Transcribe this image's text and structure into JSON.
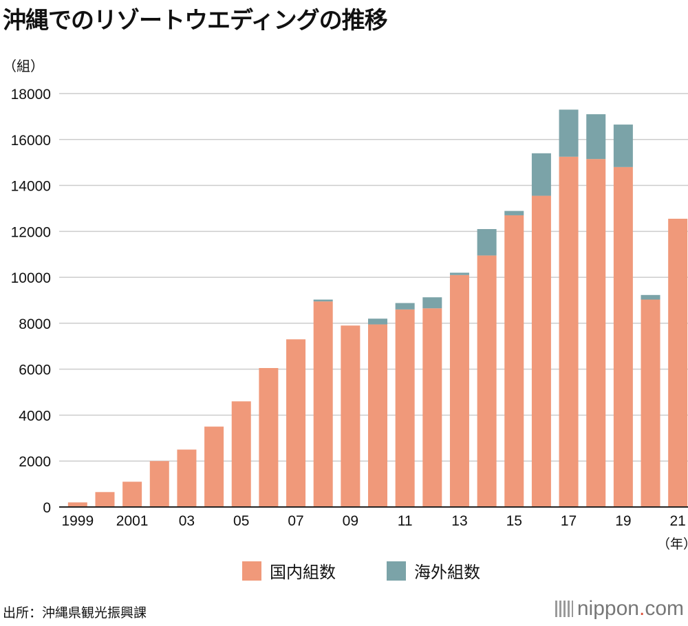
{
  "title": "沖縄でのリゾートウエディングの推移",
  "y_unit": "（組）",
  "x_unit": "（年）",
  "source": "出所：沖縄県観光振興課",
  "logo": {
    "name": "nippon",
    "dot": ".",
    "suffix": "com"
  },
  "colors": {
    "domestic": "#f0997a",
    "overseas": "#7ba3a8",
    "grid": "#cccccc",
    "axis": "#222222"
  },
  "chart_data": {
    "type": "bar",
    "stacked": true,
    "title": "沖縄でのリゾートウエディングの推移",
    "xlabel": "（年）",
    "ylabel": "（組）",
    "ylim": [
      0,
      18000
    ],
    "yticks": [
      0,
      2000,
      4000,
      6000,
      8000,
      10000,
      12000,
      14000,
      16000,
      18000
    ],
    "categories": [
      "1999",
      "2000",
      "2001",
      "2002",
      "2003",
      "2004",
      "2005",
      "2006",
      "2007",
      "2008",
      "2009",
      "2010",
      "2011",
      "2012",
      "2013",
      "2014",
      "2015",
      "2016",
      "2017",
      "2018",
      "2019",
      "2020",
      "2021"
    ],
    "xtick_labels": [
      "1999",
      "",
      "2001",
      "",
      "03",
      "",
      "05",
      "",
      "07",
      "",
      "09",
      "",
      "11",
      "",
      "13",
      "",
      "15",
      "",
      "17",
      "",
      "19",
      "",
      "21"
    ],
    "legend": [
      "国内組数",
      "海外組数"
    ],
    "legend_position": "bottom",
    "series": [
      {
        "name": "国内組数",
        "values": [
          200,
          650,
          1100,
          2000,
          2500,
          3500,
          4600,
          6050,
          7300,
          8950,
          7900,
          7950,
          8600,
          8650,
          10100,
          10950,
          12700,
          13550,
          15250,
          15150,
          14800,
          9030,
          12550
        ]
      },
      {
        "name": "海外組数",
        "values": [
          0,
          0,
          0,
          0,
          0,
          0,
          0,
          0,
          0,
          80,
          0,
          250,
          280,
          480,
          100,
          1150,
          190,
          1850,
          2050,
          1950,
          1850,
          200,
          0
        ]
      }
    ]
  }
}
